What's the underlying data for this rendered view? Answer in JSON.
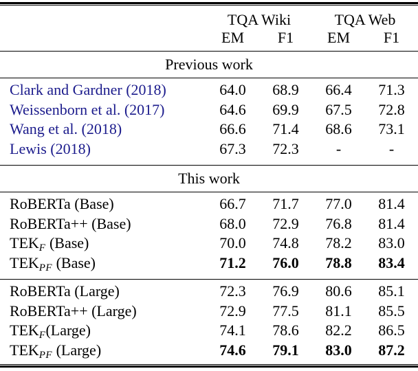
{
  "colors": {
    "citation_link": "#1b1b8c",
    "text": "#000000",
    "background": "#ffffff"
  },
  "table": {
    "column_groups": [
      "TQA Wiki",
      "TQA Web"
    ],
    "sub_headers": [
      "EM",
      "F1",
      "EM",
      "F1"
    ],
    "sections": {
      "previous": {
        "title": "Previous work",
        "rows": [
          {
            "label_pre": "Clark and Gardner (2018)",
            "label_sub": "",
            "label_post": "",
            "values": [
              "64.0",
              "68.9",
              "66.4",
              "71.3"
            ]
          },
          {
            "label_pre": "Weissenborn et al. (2017)",
            "label_sub": "",
            "label_post": "",
            "values": [
              "64.6",
              "69.9",
              "67.5",
              "72.8"
            ]
          },
          {
            "label_pre": "Wang et al. (2018)",
            "label_sub": "",
            "label_post": "",
            "values": [
              "66.6",
              "71.4",
              "68.6",
              "73.1"
            ]
          },
          {
            "label_pre": "Lewis (2018)",
            "label_sub": "",
            "label_post": "",
            "values": [
              "67.3",
              "72.3",
              "-",
              "-"
            ]
          }
        ]
      },
      "this_work": {
        "title": "This work",
        "base_rows": [
          {
            "label_pre": "RoBERTa (Base)",
            "label_sub": "",
            "label_post": "",
            "values": [
              "66.7",
              "71.7",
              "77.0",
              "81.4"
            ]
          },
          {
            "label_pre": "RoBERTa++ (Base)",
            "label_sub": "",
            "label_post": "",
            "values": [
              "68.0",
              "72.9",
              "76.8",
              "81.4"
            ]
          },
          {
            "label_pre": "TEK",
            "label_sub": "F",
            "label_post": " (Base)",
            "values": [
              "70.0",
              "74.8",
              "78.2",
              "83.0"
            ]
          },
          {
            "label_pre": "TEK",
            "label_sub": "PF",
            "label_post": " (Base)",
            "values": [
              "71.2",
              "76.0",
              "78.8",
              "83.4"
            ]
          }
        ],
        "large_rows": [
          {
            "label_pre": "RoBERTa (Large)",
            "label_sub": "",
            "label_post": "",
            "values": [
              "72.3",
              "76.9",
              "80.6",
              "85.1"
            ]
          },
          {
            "label_pre": "RoBERTa++ (Large)",
            "label_sub": "",
            "label_post": "",
            "values": [
              "72.9",
              "77.5",
              "81.1",
              "85.5"
            ]
          },
          {
            "label_pre": "TEK",
            "label_sub": "F",
            "label_post": "(Large)",
            "values": [
              "74.1",
              "78.6",
              "82.2",
              "86.5"
            ]
          },
          {
            "label_pre": "TEK",
            "label_sub": "PF",
            "label_post": " (Large)",
            "values": [
              "74.6",
              "79.1",
              "83.0",
              "87.2"
            ]
          }
        ]
      }
    }
  }
}
